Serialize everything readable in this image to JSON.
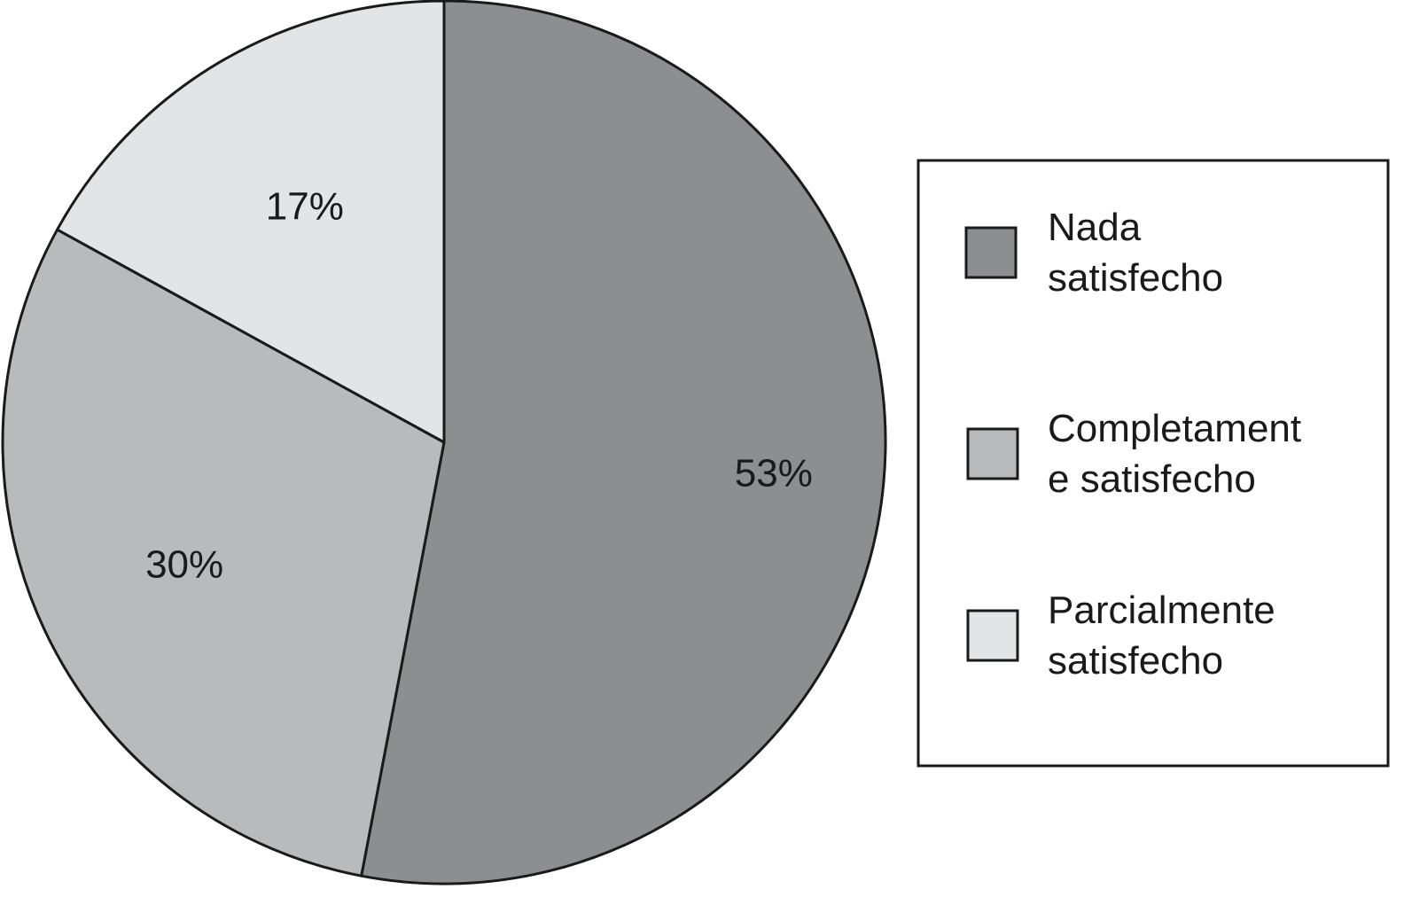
{
  "chart_data": {
    "type": "pie",
    "categories": [
      "Nada satisfecho",
      "Completamente satisfecho",
      "Parcialmente satisfecho"
    ],
    "values": [
      53,
      30,
      17
    ],
    "labels": [
      "53%",
      "30%",
      "17%"
    ],
    "colors": [
      "#8d8e91",
      "#b9babc",
      "#e3e4e6"
    ],
    "legend": {
      "placement": "right",
      "entries": [
        {
          "lines": [
            "Nada",
            "satisfecho"
          ],
          "color": "#8d8e91"
        },
        {
          "lines": [
            "Completament",
            "e satisfecho"
          ],
          "color": "#b9babc"
        },
        {
          "lines": [
            "Parcialmente",
            "satisfecho"
          ],
          "color": "#e3e4e6"
        }
      ]
    },
    "start_angle": "12 o'clock",
    "direction": "clockwise"
  }
}
